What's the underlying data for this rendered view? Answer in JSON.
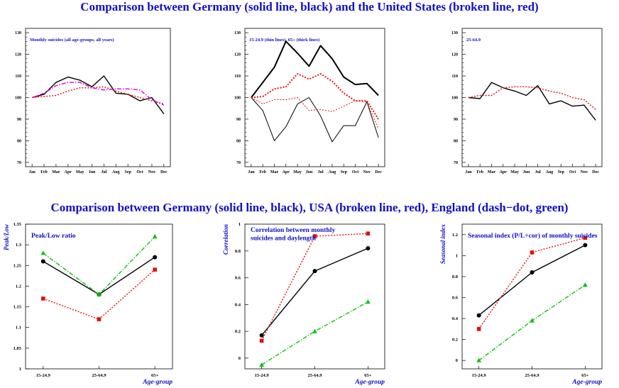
{
  "headings": {
    "top": "Comparison between Germany (solid line, black) and the United States (broken line, red)",
    "bottom": "Comparison between Germany (solid line, black), USA (broken line, red), England (dash−dot, green)"
  },
  "colors": {
    "germany": "#000000",
    "usa": "#e01010",
    "england": "#10c010",
    "all_usa": "#dd00dd",
    "label_blue": "#1010c8"
  },
  "chart_data": [
    {
      "type": "line",
      "title": "Monthly suicides (all age-groups, all years)",
      "categories": [
        "Jan",
        "Feb",
        "Mar",
        "Apr",
        "May",
        "Jun",
        "Jul",
        "Aug",
        "Sep",
        "Oct",
        "Nov",
        "Dec"
      ],
      "ylim": [
        68,
        132
      ],
      "yticks": [
        70,
        80,
        90,
        100,
        110,
        120,
        130
      ],
      "series": [
        {
          "name": "Germany",
          "style": "solid",
          "color": "#000000",
          "values": [
            100,
            101.5,
            107,
            109.5,
            108,
            105,
            110,
            102,
            101.5,
            98.5,
            100,
            92.5
          ]
        },
        {
          "name": "United States",
          "style": "dotted",
          "color": "#e01010",
          "values": [
            100,
            100.5,
            101,
            103,
            104.5,
            104.5,
            105,
            103,
            101.5,
            100,
            98.5,
            97
          ]
        },
        {
          "name": "United States (all)",
          "style": "dashdot",
          "color": "#dd00dd",
          "values": [
            100,
            102,
            105.5,
            107,
            107,
            104.5,
            103.5,
            104,
            104,
            103.5,
            99,
            96.5
          ]
        }
      ]
    },
    {
      "type": "line",
      "title": "15-24.9 (thin lines), 65+ (thick lines)",
      "categories": [
        "Jan",
        "Feb",
        "Mar",
        "Apr",
        "May",
        "Jun",
        "Jul",
        "Aug",
        "Sep",
        "Oct",
        "Nov",
        "Dec"
      ],
      "ylim": [
        68,
        132
      ],
      "yticks": [
        70,
        80,
        90,
        100,
        110,
        120,
        130
      ],
      "series": [
        {
          "name": "Germany 65+",
          "style": "solid",
          "width": 2,
          "color": "#000000",
          "values": [
            100,
            107,
            114,
            126,
            120.5,
            114.5,
            124,
            118,
            109.5,
            106,
            106.5,
            101
          ]
        },
        {
          "name": "USA 65+",
          "style": "dotted",
          "width": 2,
          "color": "#e01010",
          "values": [
            100,
            100.5,
            104,
            105,
            111,
            108.5,
            111,
            107.5,
            102,
            98.5,
            98.5,
            90
          ]
        },
        {
          "name": "Germany 15-24.9",
          "style": "solid",
          "width": 1,
          "color": "#000000",
          "values": [
            100,
            94,
            80,
            86.5,
            97,
            100,
            91.5,
            79.5,
            87,
            87,
            98,
            81.5
          ]
        },
        {
          "name": "USA 15-24.9",
          "style": "dotted",
          "width": 1,
          "color": "#e01010",
          "values": [
            100,
            97,
            99,
            99,
            100,
            94,
            94.5,
            93.5,
            96,
            98.5,
            98,
            85.5
          ]
        }
      ]
    },
    {
      "type": "line",
      "title": "25-64.9",
      "categories": [
        "Jan",
        "Feb",
        "Mar",
        "Apr",
        "May",
        "Jun",
        "Jul",
        "Aug",
        "Sep",
        "Oct",
        "Nov",
        "Dec"
      ],
      "ylim": [
        68,
        132
      ],
      "yticks": [
        70,
        80,
        90,
        100,
        110,
        120,
        130
      ],
      "series": [
        {
          "name": "Germany",
          "style": "solid",
          "color": "#000000",
          "values": [
            100,
            99.5,
            107,
            104.5,
            103,
            101,
            105.5,
            97,
            98.5,
            96,
            96.5,
            89.5
          ]
        },
        {
          "name": "United States",
          "style": "dotted",
          "color": "#e01010",
          "values": [
            100,
            101,
            101,
            104.5,
            105,
            105,
            104.5,
            103,
            102,
            100,
            99,
            94.5
          ]
        }
      ]
    },
    {
      "type": "line",
      "title": "Peak/Low ratio",
      "ylabel": "Peak/Low",
      "xlabel": "Age-group",
      "categories": [
        "15-24.9",
        "25-64.9",
        "65+"
      ],
      "ylim": [
        1,
        1.35
      ],
      "yticks": [
        1,
        1.05,
        1.1,
        1.15,
        1.2,
        1.25,
        1.3,
        1.35
      ],
      "series": [
        {
          "name": "Germany",
          "style": "solid",
          "color": "#000000",
          "marker": "circle",
          "values": [
            1.26,
            1.18,
            1.27
          ]
        },
        {
          "name": "USA",
          "style": "dotted",
          "color": "#e01010",
          "marker": "square",
          "values": [
            1.17,
            1.12,
            1.24
          ]
        },
        {
          "name": "England",
          "style": "dashdot",
          "color": "#10c010",
          "marker": "triangle",
          "values": [
            1.28,
            1.18,
            1.32
          ]
        }
      ]
    },
    {
      "type": "line",
      "title": "Correlation between monthly suicides and daylength",
      "title_lines": [
        "Correlation between monthly",
        "suicides and daylength"
      ],
      "ylabel": "Correlation",
      "xlabel": "Age-group",
      "categories": [
        "15-24.9",
        "25-64.9",
        "65+"
      ],
      "ylim": [
        -0.08,
        1
      ],
      "yticks": [
        0,
        0.2,
        0.4,
        0.6,
        0.8,
        1
      ],
      "series": [
        {
          "name": "Germany",
          "style": "solid",
          "color": "#000000",
          "marker": "circle",
          "values": [
            0.17,
            0.65,
            0.82
          ]
        },
        {
          "name": "USA",
          "style": "dotted",
          "color": "#e01010",
          "marker": "square",
          "values": [
            0.13,
            0.91,
            0.93
          ]
        },
        {
          "name": "England",
          "style": "dashdot",
          "color": "#10c010",
          "marker": "triangle",
          "values": [
            -0.05,
            0.2,
            0.42
          ]
        }
      ]
    },
    {
      "type": "line",
      "title": "Seasonal index (P/L+cor) of monthly suicides",
      "ylabel": "Seasonal index",
      "xlabel": "Age-group",
      "categories": [
        "15-24.9",
        "25-64.9",
        "65+"
      ],
      "ylim": [
        -0.08,
        1.3
      ],
      "yticks": [
        0,
        0.2,
        0.4,
        0.6,
        0.8,
        1,
        1.2
      ],
      "series": [
        {
          "name": "Germany",
          "style": "solid",
          "color": "#000000",
          "marker": "circle",
          "values": [
            0.43,
            0.84,
            1.1
          ]
        },
        {
          "name": "USA",
          "style": "dotted",
          "color": "#e01010",
          "marker": "square",
          "values": [
            0.3,
            1.03,
            1.17
          ]
        },
        {
          "name": "England",
          "style": "dashdot",
          "color": "#10c010",
          "marker": "triangle",
          "values": [
            0,
            0.38,
            0.72
          ]
        }
      ]
    }
  ]
}
